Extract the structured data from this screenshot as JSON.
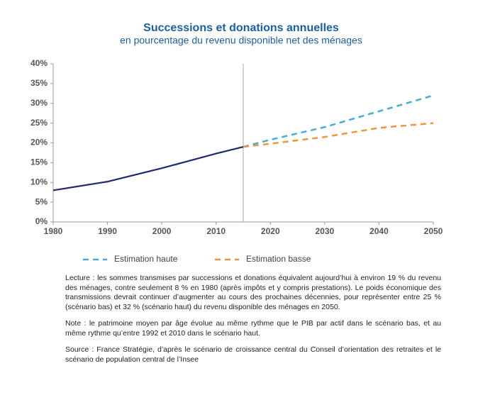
{
  "chart_data": {
    "type": "line",
    "title": "Successions et donations annuelles",
    "subtitle": "en pourcentage du revenu disponible net des ménages",
    "x": [
      1980,
      1990,
      2000,
      2010,
      2015,
      2020,
      2030,
      2040,
      2050
    ],
    "series": [
      {
        "color": "#1f2a6b",
        "dashed": false,
        "values": [
          8,
          10.2,
          13.6,
          17.3,
          19,
          null,
          null,
          null,
          null
        ]
      },
      {
        "name": "Estimation haute",
        "color": "#45acdc",
        "dashed": true,
        "values": [
          null,
          null,
          null,
          null,
          19,
          20.8,
          24,
          28,
          32
        ]
      },
      {
        "name": "Estimation basse",
        "color": "#f0963a",
        "dashed": true,
        "values": [
          null,
          null,
          null,
          null,
          19,
          19.8,
          21.5,
          23.8,
          25
        ]
      }
    ],
    "xlim": [
      1980,
      2050
    ],
    "xticks": [
      1980,
      1990,
      2000,
      2010,
      2020,
      2030,
      2040,
      2050
    ],
    "ylim": [
      0,
      40
    ],
    "yticks": [
      {
        "value": 0,
        "label": "0%"
      },
      {
        "value": 5,
        "label": "5%"
      },
      {
        "value": 10,
        "label": "10%"
      },
      {
        "value": 15,
        "label": "15%"
      },
      {
        "value": 20,
        "label": "20%"
      },
      {
        "value": 25,
        "label": "25%"
      },
      {
        "value": 30,
        "label": "30%"
      },
      {
        "value": 35,
        "label": "35%"
      },
      {
        "value": 40,
        "label": "40%"
      }
    ],
    "notes": [
      "Lecture : les sommes transmises par successions et donations équivalent aujourd’hui à environ 19 % du revenu des ménages, contre seulement 8 % en 1980 (après impôts et y compris prestations). Le poids économique des transmissions devrait continuer d’augmenter au cours des prochaines décennies, pour représenter entre 25 % (scénario bas) et 32 % (scénario haut) du revenu disponible des ménages en 2050.",
      "Note : le patrimoine moyen par âge évolue au même rythme que le PIB par actif dans le scénario bas, et au même rythme qu’entre 1992 et 2010 dans le scénario haut.",
      "Source : France Stratégie, d’après le scénario de croissance central du Conseil d’orientation des retraites et le scénario de population central de l’Insee"
    ]
  }
}
